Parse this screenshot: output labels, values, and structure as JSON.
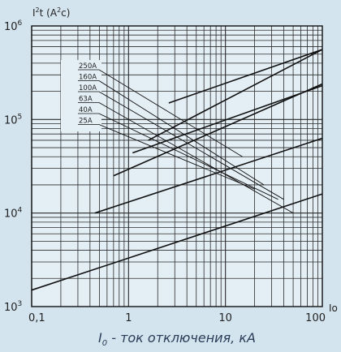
{
  "chart_data": {
    "type": "line",
    "x_scale": "log",
    "y_scale": "log",
    "xlim": [
      0.1,
      100
    ],
    "ylim": [
      1000,
      1000000
    ],
    "x_ticks": [
      {
        "value": 0.1,
        "label": "0,1"
      },
      {
        "value": 1,
        "label": "1"
      },
      {
        "value": 10,
        "label": "10"
      },
      {
        "value": 100,
        "label": "100"
      }
    ],
    "y_ticks": [
      {
        "value": 1000,
        "base": "10",
        "exp": "3"
      },
      {
        "value": 10000,
        "base": "10",
        "exp": "4"
      },
      {
        "value": 100000,
        "base": "10",
        "exp": "5"
      },
      {
        "value": 1000000,
        "base": "10",
        "exp": "6"
      }
    ],
    "ylabel": {
      "main": "I",
      "sup": "2",
      "rest": "t (A",
      "sup2": "2",
      "end": "c)"
    },
    "x_axis_end_label": "Io",
    "xlabel": {
      "main": "I",
      "sub": "0",
      "rest": " - ток отключения, кА"
    },
    "grid": true,
    "legend": {
      "placement": "top-left",
      "entries": [
        "250A",
        "160A",
        "100A",
        "63A",
        "40A",
        "25A"
      ]
    },
    "series": [
      {
        "name": "25A",
        "points": [
          [
            0.13,
            3000
          ],
          [
            100,
            16000
          ]
        ],
        "start": [
          0.1,
          1500
        ]
      },
      {
        "name": "40A",
        "points": [
          [
            0.45,
            10000
          ],
          [
            100,
            63000
          ]
        ]
      },
      {
        "name": "63A",
        "points": [
          [
            0.7,
            25000
          ],
          [
            100,
            240000
          ]
        ]
      },
      {
        "name": "100A",
        "points": [
          [
            1.1,
            44000
          ],
          [
            100,
            230000
          ]
        ]
      },
      {
        "name": "160A",
        "points": [
          [
            1.6,
            60000
          ],
          [
            100,
            560000
          ]
        ]
      },
      {
        "name": "250A",
        "points": [
          [
            2.6,
            150000
          ],
          [
            100,
            560000
          ]
        ]
      }
    ],
    "leaders": [
      {
        "name": "250A",
        "to": [
          15,
          40000
        ]
      },
      {
        "name": "160A",
        "to": [
          25,
          20000
        ]
      },
      {
        "name": "100A",
        "to": [
          40,
          14000
        ]
      },
      {
        "name": "63A",
        "to": [
          50,
          10000
        ]
      },
      {
        "name": "40A",
        "to": [
          35,
          14000
        ]
      },
      {
        "name": "25A",
        "to": [
          20,
          18000
        ]
      }
    ]
  }
}
